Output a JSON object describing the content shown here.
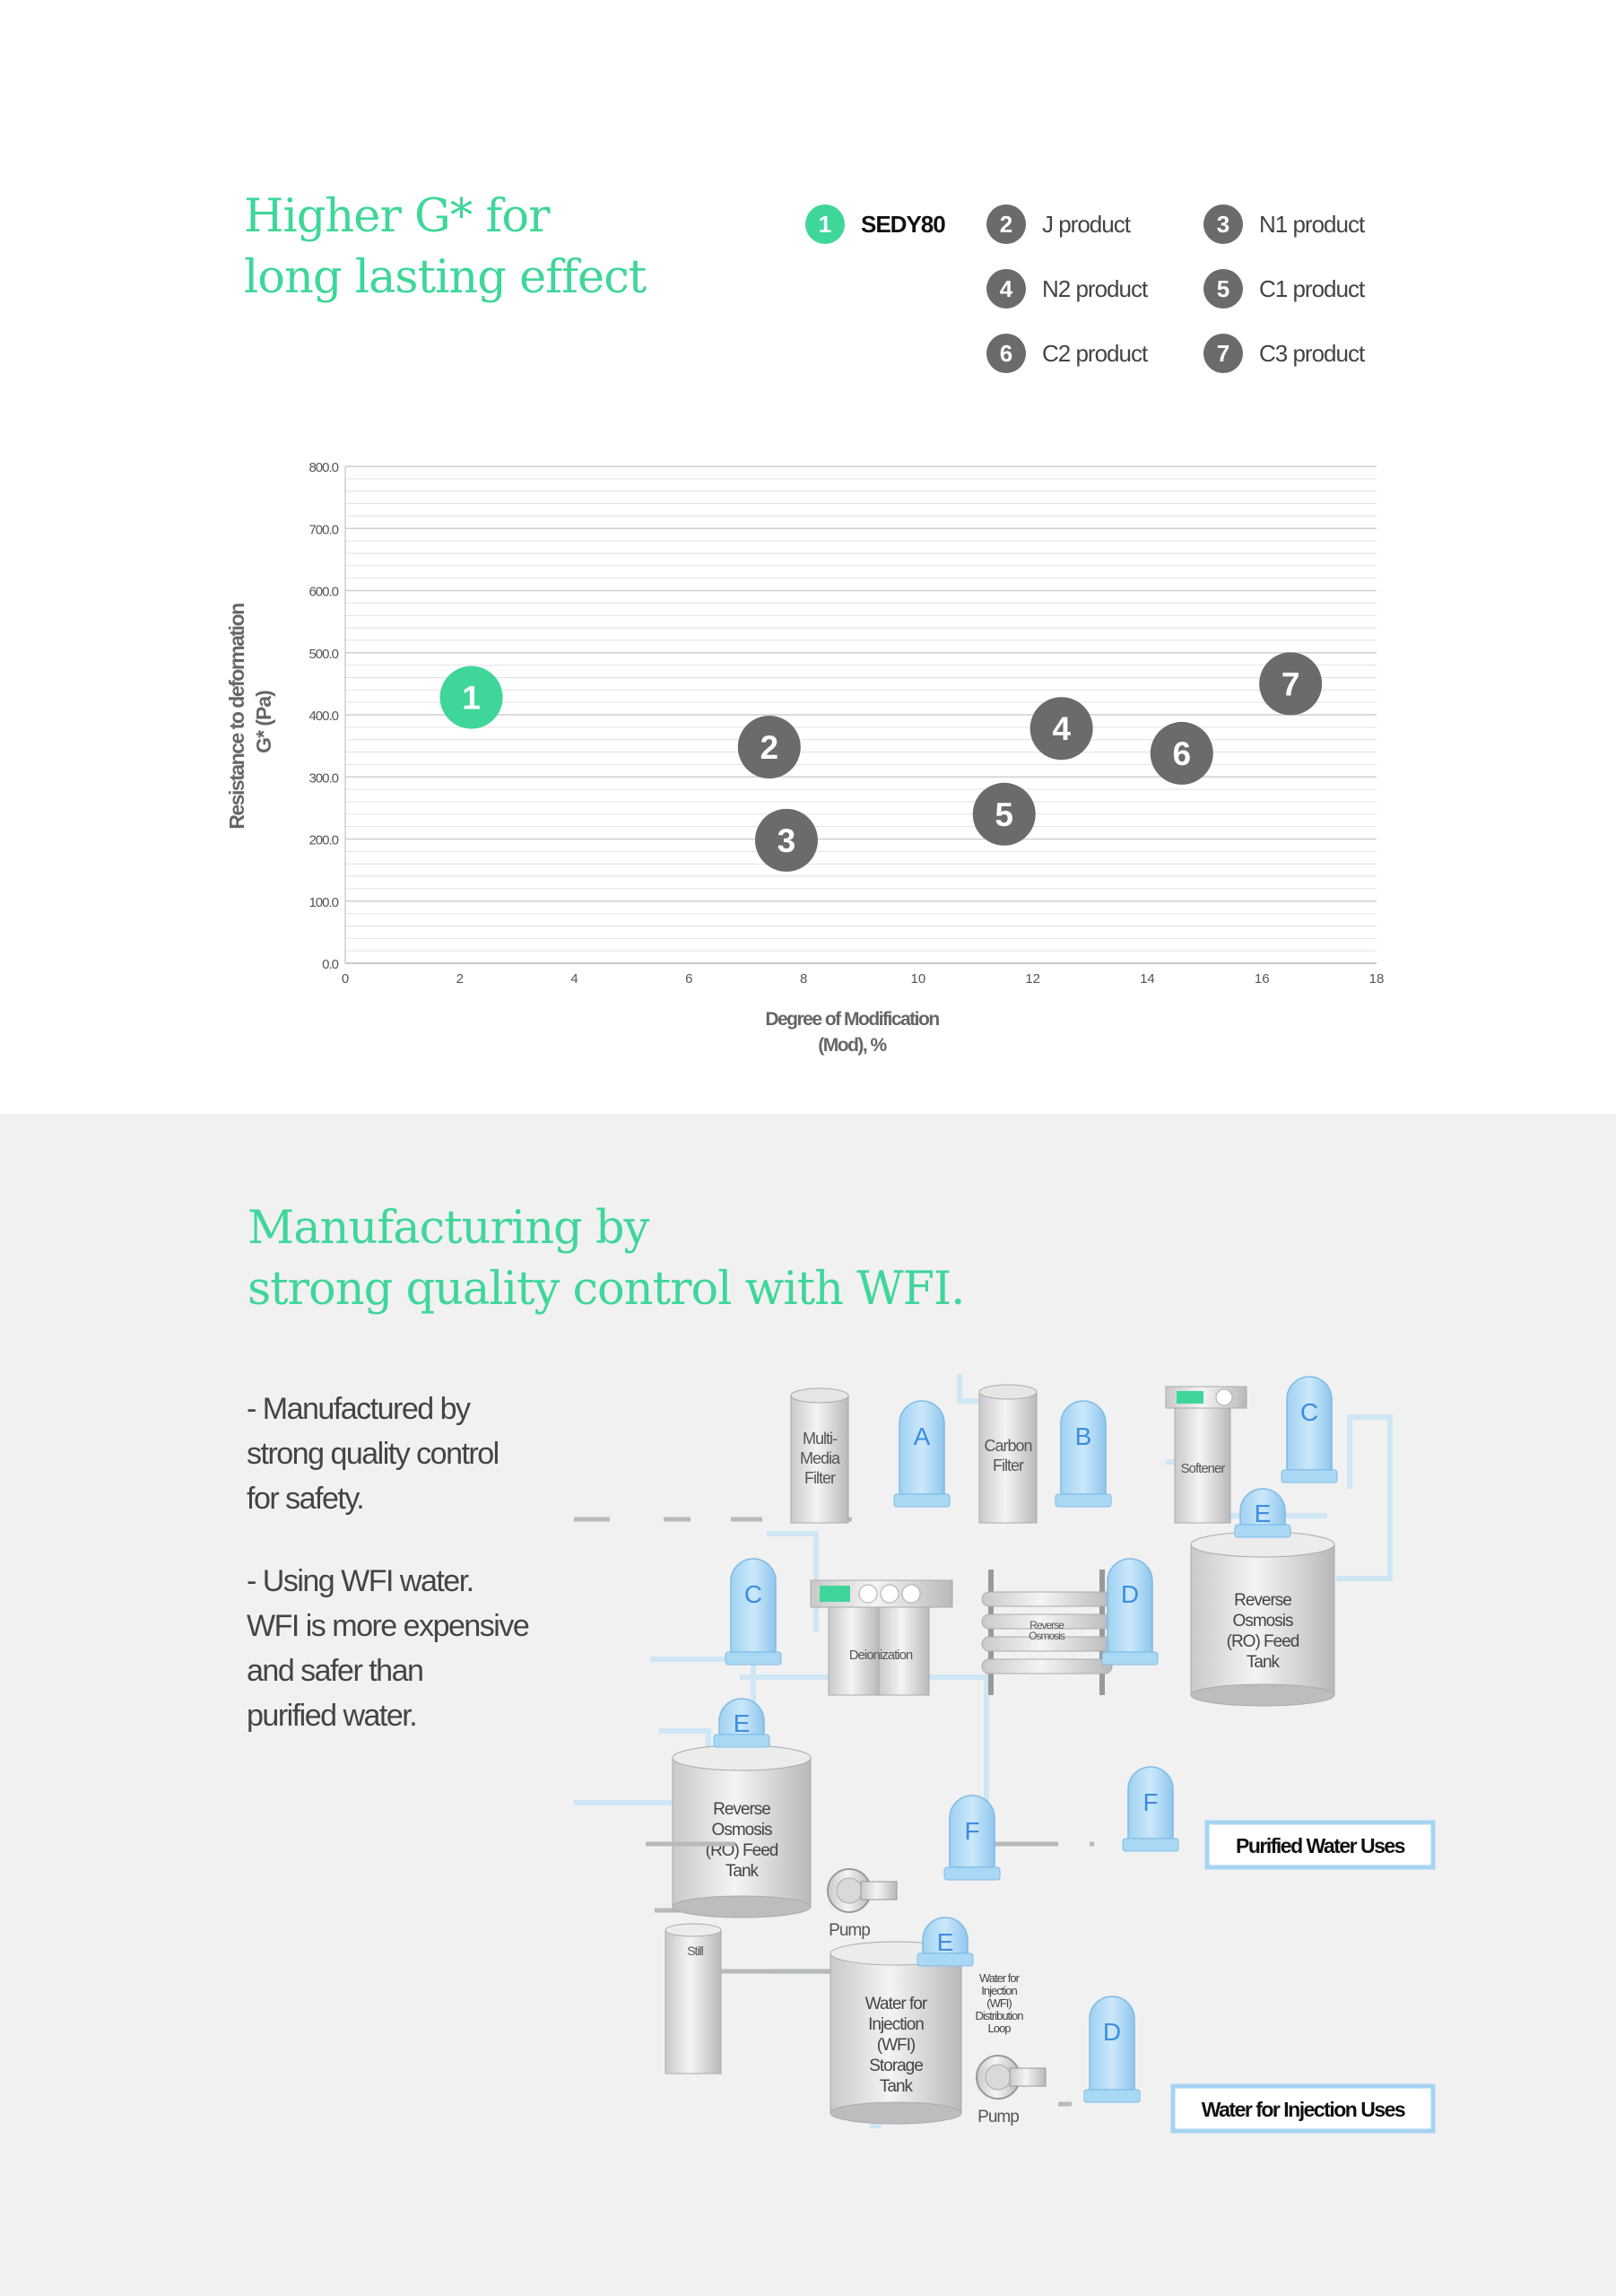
{
  "chart_section": {
    "title": "Higher G* for\nlong lasting effect",
    "legend": [
      {
        "num": "1",
        "label": "SEDY80",
        "highlight": true
      },
      {
        "num": "2",
        "label": "J product"
      },
      {
        "num": "3",
        "label": "N1 product"
      },
      {
        "num": "4",
        "label": "N2 product"
      },
      {
        "num": "5",
        "label": "C1 product"
      },
      {
        "num": "6",
        "label": "C2 product"
      },
      {
        "num": "7",
        "label": "C3 product"
      }
    ]
  },
  "chart_data": {
    "type": "scatter",
    "ylabel": [
      "Resistance to deformation",
      "G* (Pa)"
    ],
    "xlabel": [
      "Degree of Modification",
      "(Mod), %"
    ],
    "xlim": [
      0,
      18
    ],
    "ylim": [
      0,
      800
    ],
    "x_ticks": [
      "0",
      "2",
      "4",
      "6",
      "8",
      "10",
      "12",
      "14",
      "16",
      "18"
    ],
    "y_ticks": [
      "0.0",
      "100.0",
      "200.0",
      "300.0",
      "400.0",
      "500.0",
      "600.0",
      "700.0",
      "800.0"
    ],
    "points": [
      {
        "label": "1",
        "x": 2.2,
        "y": 428,
        "color": "#3fd69a"
      },
      {
        "label": "2",
        "x": 7.4,
        "y": 348,
        "color": "#6b6b6b"
      },
      {
        "label": "3",
        "x": 7.7,
        "y": 198,
        "color": "#6b6b6b"
      },
      {
        "label": "4",
        "x": 12.5,
        "y": 378,
        "color": "#6b6b6b"
      },
      {
        "label": "5",
        "x": 11.5,
        "y": 240,
        "color": "#6b6b6b"
      },
      {
        "label": "6",
        "x": 14.6,
        "y": 338,
        "color": "#6b6b6b"
      },
      {
        "label": "7",
        "x": 16.5,
        "y": 450,
        "color": "#6b6b6b"
      }
    ],
    "grid": true
  },
  "manufacturing": {
    "title": "Manufacturing by\nstrong quality control with WFI.",
    "bullets": [
      "- Manufactured by\n  strong quality control\n  for safety.",
      "- Using WFI water.\n  WFI is more expensive\n  and safer than\n  purified water."
    ]
  },
  "diagram": {
    "pump": "Pump",
    "multi_media_filter": [
      "Multi-",
      "Media",
      "Filter"
    ],
    "carbon_filter": [
      "Carbon",
      "Filter"
    ],
    "softener": "Softener",
    "ro_feed_tank": [
      "Reverse",
      "Osmosis",
      "(RO) Feed",
      "Tank"
    ],
    "deionization": "Deionization",
    "reverse_osmosis": [
      "Reverse",
      "Osmosis"
    ],
    "still": "Still",
    "wfi_storage_tank": [
      "Water for",
      "Injection",
      "(WFI)",
      "Storage",
      "Tank"
    ],
    "wfi_loop": [
      "Water for",
      "Injection",
      "(WFI)",
      "Distribution",
      "Loop"
    ],
    "purified_water_uses": "Purified Water Uses",
    "wfi_uses": "Water for Injection Uses",
    "letters": {
      "a": "A",
      "b": "B",
      "c": "C",
      "d": "D",
      "e": "E",
      "f": "F"
    }
  },
  "colors": {
    "accent": "#3fd69a",
    "point": "#6b6b6b",
    "filter": "#a9d8f5",
    "filter_letter": "#3b8de0",
    "box_border": "#a6d4f2"
  }
}
